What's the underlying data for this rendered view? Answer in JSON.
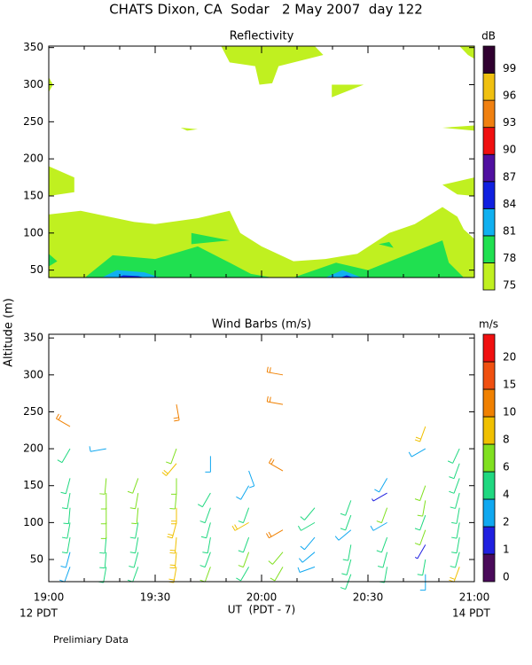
{
  "title": "CHATS Dixon, CA  Sodar   2 May 2007  day 122",
  "y_label": "Altitude (m)",
  "x_label": "UT  (PDT - 7)",
  "x_start_label": "12 PDT",
  "x_end_label": "14 PDT",
  "note": "Prelimiary Data",
  "chart_data": [
    {
      "type": "contour",
      "title": "Reflectivity",
      "unit": "dB",
      "xlim": [
        19,
        21
      ],
      "xticks": [
        19,
        19.5,
        20,
        20.5,
        21
      ],
      "ylim": [
        40,
        352
      ],
      "yticks": [
        50,
        100,
        150,
        200,
        250,
        300,
        350
      ],
      "levels": [
        75,
        78,
        81,
        84,
        87,
        90,
        93,
        96,
        99
      ],
      "colors": [
        "#c0f020",
        "#20e050",
        "#10b0f0",
        "#1020e0",
        "#5010a0",
        "#f01010",
        "#f08010",
        "#f0c010",
        "#300030"
      ],
      "contours": [
        {
          "level": 75,
          "points": [
            [
              19,
              40
            ],
            [
              19,
              125
            ],
            [
              19.15,
              130
            ],
            [
              19.4,
              115
            ],
            [
              19.5,
              112
            ],
            [
              19.7,
              120
            ],
            [
              19.85,
              130
            ],
            [
              19.9,
              100
            ],
            [
              20,
              82
            ],
            [
              20.15,
              62
            ],
            [
              20.3,
              65
            ],
            [
              20.45,
              72
            ],
            [
              20.6,
              100
            ],
            [
              20.72,
              112
            ],
            [
              20.85,
              135
            ],
            [
              20.92,
              122
            ],
            [
              20.95,
              105
            ],
            [
              21,
              92
            ],
            [
              21,
              40
            ]
          ]
        },
        {
          "level": 75,
          "points": [
            [
              19.81,
              352
            ],
            [
              19.85,
              330
            ],
            [
              19.97,
              325
            ],
            [
              19.99,
              300
            ],
            [
              20.05,
              302
            ],
            [
              20.08,
              325
            ],
            [
              20.29,
              340
            ],
            [
              20.25,
              352
            ]
          ]
        },
        {
          "level": 75,
          "points": [
            [
              19,
              190
            ],
            [
              19.12,
              175
            ],
            [
              19.12,
              155
            ],
            [
              19,
              150
            ]
          ]
        },
        {
          "level": 75,
          "points": [
            [
              19,
              310
            ],
            [
              19.02,
              300
            ],
            [
              19,
              290
            ]
          ]
        },
        {
          "level": 75,
          "points": [
            [
              20.33,
              300
            ],
            [
              20.48,
              300
            ],
            [
              20.33,
              283
            ]
          ]
        },
        {
          "level": 75,
          "points": [
            [
              19.62,
              242
            ],
            [
              19.7,
              240
            ],
            [
              19.65,
              238
            ]
          ]
        },
        {
          "level": 75,
          "points": [
            [
              20.85,
              242
            ],
            [
              21,
              238
            ],
            [
              21,
              245
            ]
          ]
        },
        {
          "level": 75,
          "points": [
            [
              20.85,
              165
            ],
            [
              21,
              175
            ],
            [
              21,
              150
            ],
            [
              20.92,
              152
            ]
          ]
        },
        {
          "level": 75,
          "points": [
            [
              20.93,
              352
            ],
            [
              20.97,
              340
            ],
            [
              21,
              335
            ],
            [
              21,
              352
            ]
          ]
        },
        {
          "level": 78,
          "points": [
            [
              19,
              55
            ],
            [
              19.04,
              62
            ],
            [
              19,
              72
            ]
          ]
        },
        {
          "level": 78,
          "points": [
            [
              19.17,
              40
            ],
            [
              19.3,
              70
            ],
            [
              19.5,
              65
            ],
            [
              19.7,
              82
            ],
            [
              19.85,
              60
            ],
            [
              19.95,
              45
            ],
            [
              20.05,
              40
            ]
          ]
        },
        {
          "level": 78,
          "points": [
            [
              20.15,
              40
            ],
            [
              20.35,
              60
            ],
            [
              20.5,
              50
            ],
            [
              20.85,
              90
            ],
            [
              20.88,
              60
            ],
            [
              20.95,
              40
            ]
          ]
        },
        {
          "level": 78,
          "points": [
            [
              19.67,
              100
            ],
            [
              19.85,
              90
            ],
            [
              19.67,
              85
            ]
          ]
        },
        {
          "level": 78,
          "points": [
            [
              20.55,
              85
            ],
            [
              20.62,
              80
            ],
            [
              20.6,
              88
            ]
          ]
        },
        {
          "level": 81,
          "points": [
            [
              19.25,
              40
            ],
            [
              19.32,
              50
            ],
            [
              19.45,
              47
            ],
            [
              19.52,
              40
            ]
          ]
        },
        {
          "level": 81,
          "points": [
            [
              20.3,
              40
            ],
            [
              20.38,
              50
            ],
            [
              20.47,
              40
            ]
          ]
        },
        {
          "level": 84,
          "points": [
            [
              19.32,
              40
            ],
            [
              19.35,
              43
            ],
            [
              19.42,
              42
            ],
            [
              19.45,
              40
            ]
          ]
        },
        {
          "level": 84,
          "points": [
            [
              20.37,
              40
            ],
            [
              20.4,
              43
            ],
            [
              20.43,
              40
            ]
          ]
        }
      ]
    },
    {
      "type": "barbs",
      "title": "Wind Barbs (m/s)",
      "unit": "m/s",
      "xlim": [
        19,
        21
      ],
      "xticks": [
        {
          "value": 19,
          "label": "19:00"
        },
        {
          "value": 19.5,
          "label": "19:30"
        },
        {
          "value": 20,
          "label": "20:00"
        },
        {
          "value": 20.5,
          "label": "20:30"
        },
        {
          "value": 21,
          "label": "21:00"
        }
      ],
      "ylim": [
        20,
        355
      ],
      "yticks": [
        50,
        100,
        150,
        200,
        250,
        300,
        350
      ],
      "levels": [
        0,
        1,
        2,
        4,
        6,
        8,
        10,
        15,
        20
      ],
      "colors": [
        "#4a0a5a",
        "#2020e0",
        "#10a8f0",
        "#20d880",
        "#80e020",
        "#f0c000",
        "#f08000",
        "#f05010",
        "#f01010"
      ],
      "barbs": {
        "x": [
          19.1,
          19.1,
          19.1,
          19.1,
          19.1,
          19.1,
          19.1,
          19.1,
          19.1,
          19.27,
          19.27,
          19.27,
          19.27,
          19.27,
          19.27,
          19.27,
          19.27,
          19.42,
          19.42,
          19.42,
          19.42,
          19.42,
          19.42,
          19.42,
          19.6,
          19.6,
          19.6,
          19.6,
          19.6,
          19.6,
          19.6,
          19.6,
          19.6,
          19.6,
          19.76,
          19.76,
          19.76,
          19.76,
          19.76,
          19.76,
          19.76,
          19.94,
          19.94,
          19.94,
          19.94,
          19.94,
          19.94,
          19.94,
          20.1,
          20.1,
          20.1,
          20.1,
          20.1,
          20.1,
          20.25,
          20.25,
          20.25,
          20.25,
          20.25,
          20.42,
          20.42,
          20.42,
          20.42,
          20.42,
          20.42,
          20.59,
          20.59,
          20.59,
          20.59,
          20.59,
          20.59,
          20.59,
          20.77,
          20.77,
          20.77,
          20.77,
          20.77,
          20.77,
          20.77,
          20.77,
          20.77,
          20.93,
          20.93,
          20.93,
          20.93,
          20.93,
          20.93,
          20.93,
          20.93,
          20.93
        ],
        "y": [
          40,
          60,
          80,
          100,
          120,
          140,
          160,
          200,
          230,
          40,
          60,
          80,
          100,
          120,
          140,
          160,
          200,
          40,
          60,
          80,
          100,
          120,
          140,
          160,
          40,
          60,
          80,
          100,
          120,
          140,
          160,
          180,
          200,
          260,
          40,
          60,
          80,
          100,
          120,
          140,
          190,
          40,
          60,
          80,
          100,
          120,
          150,
          170,
          40,
          60,
          90,
          170,
          260,
          300,
          40,
          60,
          80,
          100,
          120,
          30,
          50,
          70,
          90,
          110,
          130,
          40,
          60,
          80,
          100,
          120,
          140,
          160,
          30,
          50,
          70,
          90,
          110,
          130,
          150,
          200,
          230,
          40,
          60,
          80,
          100,
          120,
          140,
          160,
          180,
          200
        ],
        "speed": [
          3,
          3,
          4,
          4,
          5,
          5,
          5,
          5,
          10,
          4,
          5,
          5,
          6,
          6,
          6,
          6,
          3,
          4,
          4,
          5,
          5,
          6,
          6,
          6,
          8,
          8,
          8,
          8,
          8,
          6,
          6,
          8,
          6,
          10,
          6,
          5,
          5,
          5,
          4,
          4,
          3,
          5,
          6,
          5,
          8,
          5,
          3,
          3,
          6,
          6,
          10,
          10,
          12,
          12,
          3,
          3,
          3,
          4,
          5,
          5,
          4,
          5,
          3,
          4,
          4,
          4,
          4,
          4,
          3,
          6,
          1,
          3,
          3,
          4,
          1,
          6,
          5,
          6,
          7,
          3,
          8,
          8,
          5,
          5,
          5,
          5,
          4,
          4,
          5,
          5
        ],
        "direction": [
          200,
          195,
          190,
          190,
          185,
          190,
          195,
          210,
          300,
          190,
          185,
          185,
          180,
          180,
          180,
          185,
          260,
          200,
          195,
          190,
          190,
          185,
          190,
          200,
          190,
          185,
          185,
          195,
          180,
          185,
          180,
          220,
          200,
          170,
          200,
          200,
          190,
          195,
          200,
          210,
          180,
          210,
          200,
          200,
          240,
          200,
          210,
          160,
          210,
          220,
          240,
          300,
          280,
          280,
          250,
          230,
          220,
          240,
          220,
          200,
          195,
          190,
          230,
          200,
          200,
          190,
          195,
          200,
          240,
          200,
          240,
          210,
          180,
          190,
          210,
          200,
          200,
          190,
          200,
          240,
          200,
          200,
          195,
          190,
          190,
          190,
          195,
          200,
          200,
          205
        ]
      }
    }
  ]
}
